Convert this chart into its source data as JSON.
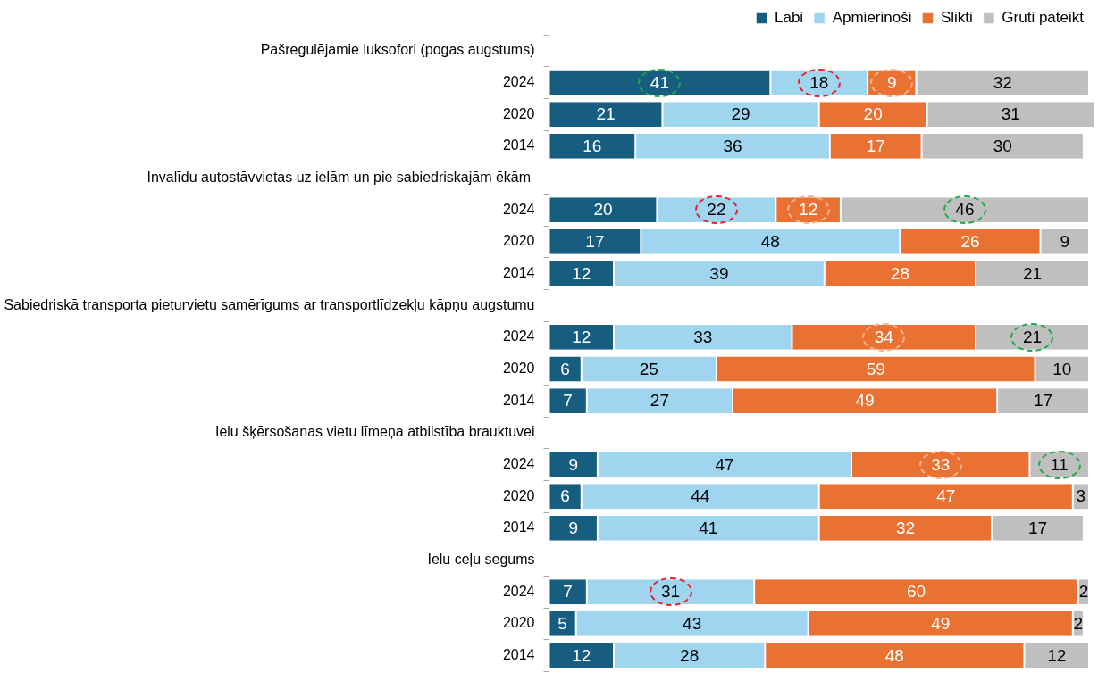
{
  "chart_data": {
    "type": "bar",
    "orientation": "horizontal",
    "stacked": true,
    "data_labels": true,
    "legend": "top right",
    "grid": false,
    "tick_labels": "y",
    "xlim": [
      0,
      101
    ],
    "categories": [
      "Pašregulējamie luksofori (pogas augstums)",
      "2024",
      "2020",
      "2014",
      "Invalīdu autostāvvietas uz ielām un pie sabiedriskajām ēkām ",
      "2024",
      "2020",
      "2014",
      "Sabiedriskā transporta pieturvietu samērīgums ar transportlīdzekļu kāpņu augstumu",
      "2024",
      "2020",
      "2014",
      "Ielu šķērsošanas vietu līmeņa atbilstība brauktuvei",
      "2024",
      "2020",
      "2014",
      "Ielu ceļu segums",
      "2024",
      "2020",
      "2014"
    ],
    "series": [
      {
        "name": "Labi",
        "color": "#175d80",
        "values": [
          null,
          41,
          21,
          16,
          null,
          20,
          17,
          12,
          null,
          12,
          6,
          7,
          null,
          9,
          6,
          9,
          null,
          7,
          5,
          12
        ]
      },
      {
        "name": "Apmierinoši",
        "color": "#9fd5ef",
        "values": [
          null,
          18,
          29,
          36,
          null,
          22,
          48,
          39,
          null,
          33,
          25,
          27,
          null,
          47,
          44,
          41,
          null,
          31,
          43,
          28
        ]
      },
      {
        "name": "Slikti",
        "color": "#e97132",
        "values": [
          null,
          9,
          20,
          17,
          null,
          12,
          26,
          28,
          null,
          34,
          59,
          49,
          null,
          33,
          47,
          32,
          null,
          60,
          49,
          48
        ]
      },
      {
        "name": "Grūti pateikt",
        "color": "#bfbfbf",
        "values": [
          null,
          32,
          31,
          30,
          null,
          46,
          9,
          21,
          null,
          21,
          10,
          17,
          null,
          11,
          3,
          17,
          null,
          2,
          2,
          12
        ]
      }
    ]
  }
}
